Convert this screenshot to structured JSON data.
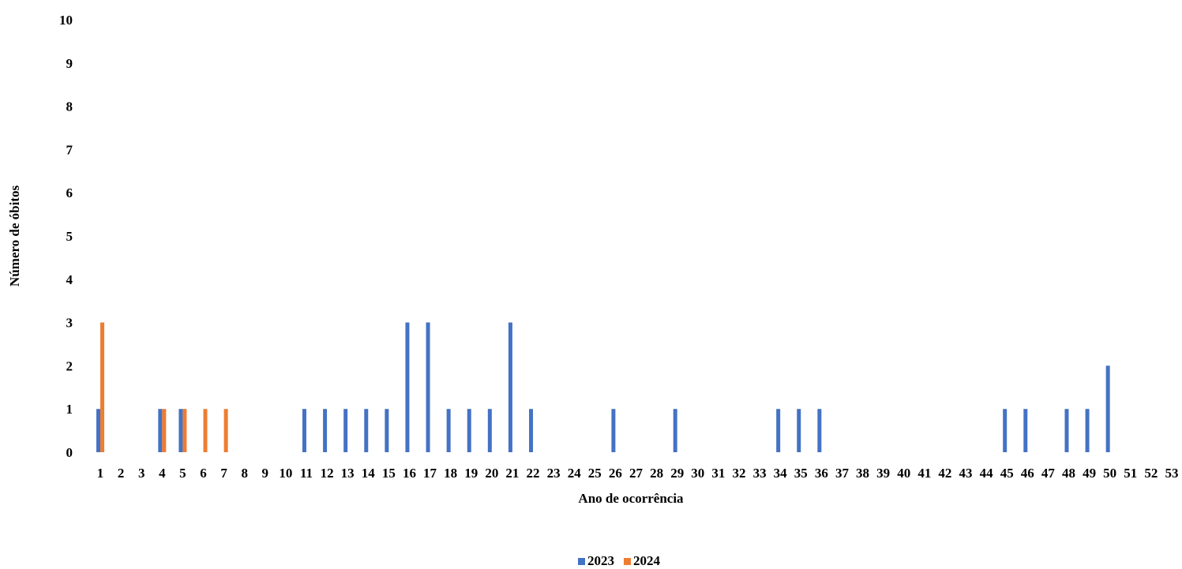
{
  "chart_data": {
    "type": "bar",
    "xlabel": "Ano de ocorrência",
    "ylabel": "Número de óbitos",
    "ylim": [
      0,
      10
    ],
    "yticks": [
      "0",
      "1",
      "2",
      "3",
      "4",
      "5",
      "6",
      "7",
      "8",
      "9",
      "10"
    ],
    "grid": false,
    "legend": "bottom",
    "categories": [
      "1",
      "2",
      "3",
      "4",
      "5",
      "6",
      "7",
      "8",
      "9",
      "10",
      "11",
      "12",
      "13",
      "14",
      "15",
      "16",
      "17",
      "18",
      "19",
      "20",
      "21",
      "22",
      "23",
      "24",
      "25",
      "26",
      "27",
      "28",
      "29",
      "30",
      "31",
      "32",
      "33",
      "34",
      "35",
      "36",
      "37",
      "38",
      "39",
      "40",
      "41",
      "42",
      "43",
      "44",
      "45",
      "46",
      "47",
      "48",
      "49",
      "50",
      "51",
      "52",
      "53"
    ],
    "series": [
      {
        "name": "2023",
        "color": "#4472C4",
        "values": [
          1,
          0,
          0,
          1,
          1,
          0,
          0,
          0,
          0,
          0,
          1,
          1,
          1,
          1,
          1,
          3,
          3,
          1,
          1,
          1,
          3,
          1,
          0,
          0,
          0,
          1,
          0,
          0,
          1,
          0,
          0,
          0,
          0,
          1,
          1,
          1,
          0,
          0,
          0,
          0,
          0,
          0,
          0,
          0,
          1,
          1,
          0,
          1,
          1,
          2,
          0,
          0,
          0
        ]
      },
      {
        "name": "2024",
        "color": "#ED7D31",
        "values": [
          3,
          0,
          0,
          1,
          1,
          1,
          1,
          0,
          0,
          0,
          0,
          0,
          0,
          0,
          0,
          0,
          0,
          0,
          0,
          0,
          0,
          0,
          0,
          0,
          0,
          0,
          0,
          0,
          0,
          0,
          0,
          0,
          0,
          0,
          0,
          0,
          0,
          0,
          0,
          0,
          0,
          0,
          0,
          0,
          0,
          0,
          0,
          0,
          0,
          0,
          0,
          0,
          0
        ]
      }
    ]
  }
}
